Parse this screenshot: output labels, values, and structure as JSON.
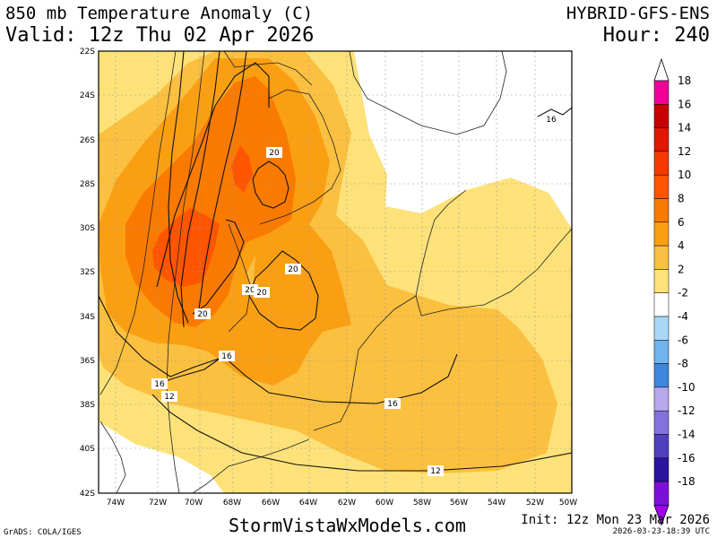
{
  "header": {
    "title": "850 mb Temperature Anomaly (C)",
    "valid": "Valid: 12z Thu 02 Apr 2026",
    "model": "HYBRID-GFS-ENS",
    "hour": "Hour: 240"
  },
  "footer": {
    "grads": "GrADS: COLA/IGES",
    "website": "StormVistaWxModels.com",
    "init": "Init: 12z Mon 23 Mar 2026",
    "stamp": "2026-03-23-18:39 UTC"
  },
  "map": {
    "lat_labels": [
      "22S",
      "24S",
      "26S",
      "28S",
      "30S",
      "32S",
      "34S",
      "36S",
      "38S",
      "40S",
      "42S"
    ],
    "lon_labels": [
      "74W",
      "72W",
      "70W",
      "68W",
      "66W",
      "64W",
      "62W",
      "60W",
      "58W",
      "56W",
      "54W",
      "52W",
      "50W"
    ],
    "contour_labels": [
      "20",
      "20",
      "20",
      "20",
      "20",
      "16",
      "16",
      "16",
      "16",
      "12",
      "12"
    ]
  },
  "colorbar": {
    "levels": [
      {
        "label": "18",
        "color": "#ee0099"
      },
      {
        "label": "16",
        "color": "#c80000"
      },
      {
        "label": "14",
        "color": "#e01800"
      },
      {
        "label": "12",
        "color": "#f53a00"
      },
      {
        "label": "10",
        "color": "#ff5500"
      },
      {
        "label": "8",
        "color": "#fa7a00"
      },
      {
        "label": "6",
        "color": "#fb9f12"
      },
      {
        "label": "4",
        "color": "#fbc040"
      },
      {
        "label": "2",
        "color": "#fde27a"
      },
      {
        "label": "-2",
        "color": "#ffffff"
      },
      {
        "label": "-4",
        "color": "#a8d7f8"
      },
      {
        "label": "-6",
        "color": "#6fb4ee"
      },
      {
        "label": "-8",
        "color": "#3d86de"
      },
      {
        "label": "-10",
        "color": "#b8a8ee"
      },
      {
        "label": "-12",
        "color": "#8272dc"
      },
      {
        "label": "-14",
        "color": "#5040be"
      },
      {
        "label": "-16",
        "color": "#2a14a0"
      },
      {
        "label": "-18",
        "color": "#7d10d8"
      }
    ],
    "bottom_arrow_color": "#9e00ee"
  }
}
